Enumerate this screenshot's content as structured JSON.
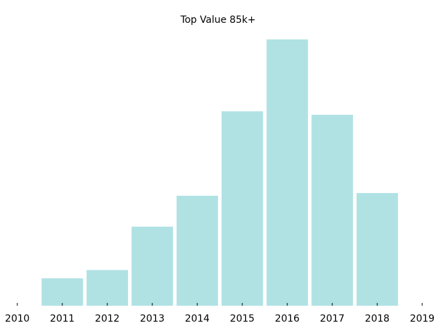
{
  "chart_data": {
    "type": "bar",
    "title": "Top Value 85k+",
    "xlabel": "",
    "ylabel": "",
    "x_ticks": [
      "2010",
      "2011",
      "2012",
      "2013",
      "2014",
      "2015",
      "2016",
      "2017",
      "2018",
      "2019"
    ],
    "xlim": [
      2010,
      2019
    ],
    "categories": [
      "2011",
      "2012",
      "2013",
      "2014",
      "2015",
      "2016",
      "2017",
      "2018"
    ],
    "values": [
      10.3,
      13.4,
      29.7,
      41.3,
      73.0,
      100.0,
      71.7,
      42.3
    ],
    "ylim": [
      0,
      100
    ],
    "y_axis_visible": false,
    "grid": false,
    "legend": "none",
    "bar_color": "#b0e2e4"
  }
}
